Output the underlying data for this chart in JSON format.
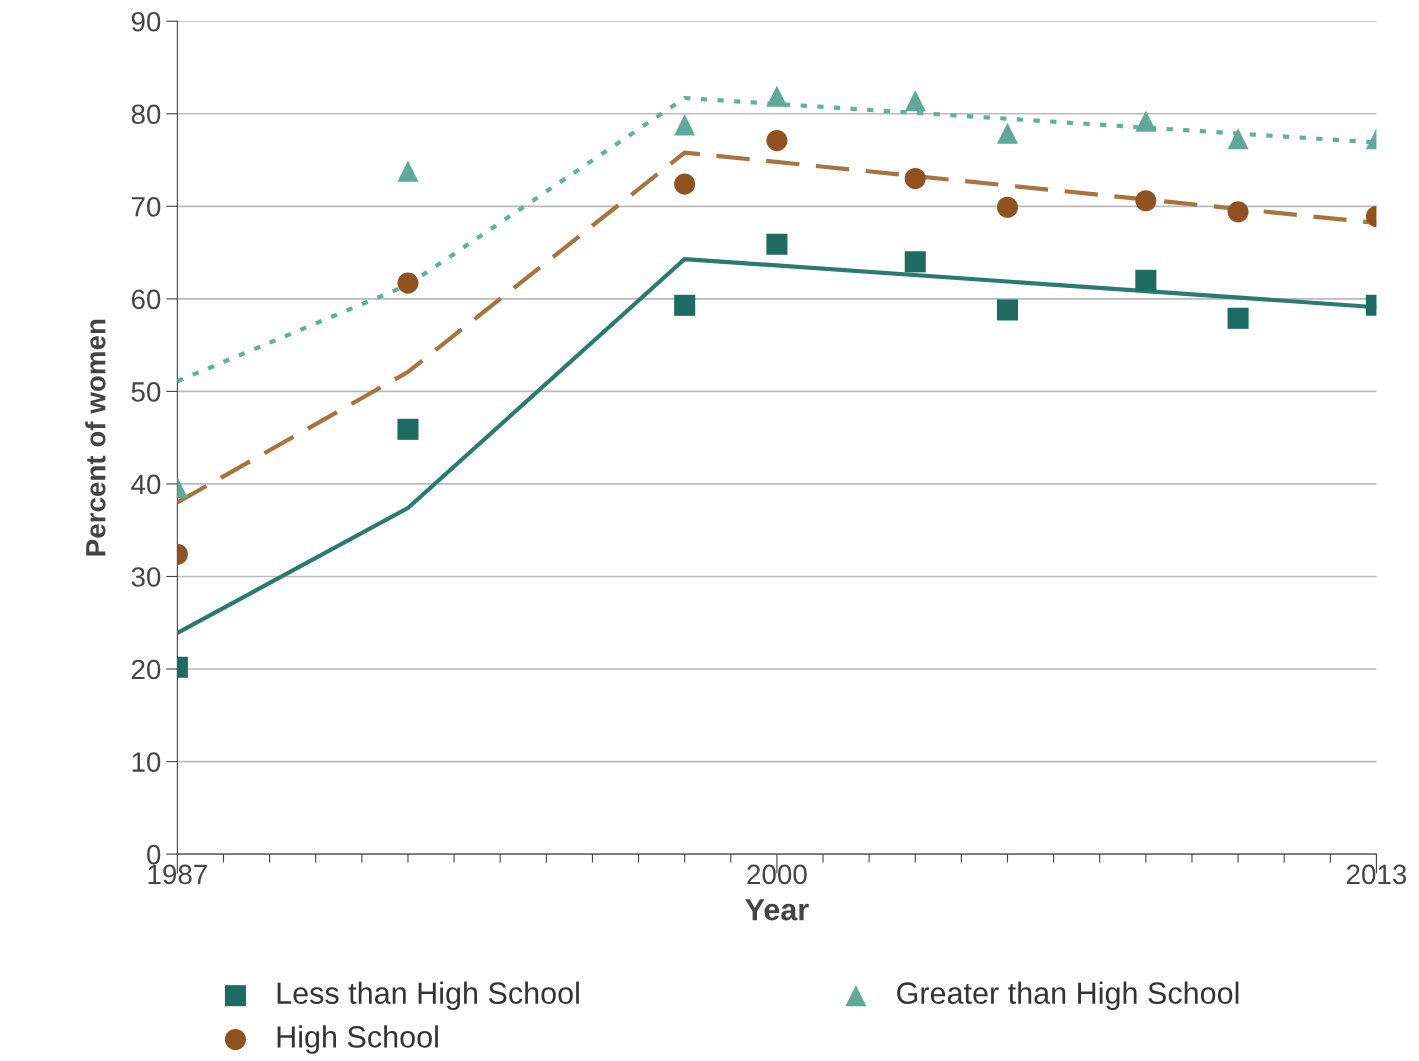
{
  "chart_data": {
    "type": "scatter",
    "xlabel": "Year",
    "ylabel": "Percent of women",
    "xlim": [
      1987,
      2013
    ],
    "xticks": [
      1987,
      {
        "value": 1988,
        "label": null
      },
      {
        "value": 1989,
        "label": null
      },
      {
        "value": 1990,
        "label": null
      },
      {
        "value": 1991,
        "label": null
      },
      {
        "value": 1992,
        "label": null
      },
      {
        "value": 1993,
        "label": null
      },
      {
        "value": 1994,
        "label": null
      },
      {
        "value": 1995,
        "label": null
      },
      {
        "value": 1996,
        "label": null
      },
      {
        "value": 1997,
        "label": null
      },
      {
        "value": 1998,
        "label": null
      },
      {
        "value": 1999,
        "label": null
      },
      2000,
      {
        "value": 2001,
        "label": null
      },
      {
        "value": 2002,
        "label": null
      },
      {
        "value": 2003,
        "label": null
      },
      {
        "value": 2004,
        "label": null
      },
      {
        "value": 2005,
        "label": null
      },
      {
        "value": 2006,
        "label": null
      },
      {
        "value": 2007,
        "label": null
      },
      {
        "value": 2008,
        "label": null
      },
      {
        "value": 2009,
        "label": null
      },
      {
        "value": 2010,
        "label": null
      },
      {
        "value": 2011,
        "label": null
      },
      {
        "value": 2012,
        "label": null
      },
      2013
    ],
    "ylim": [
      0,
      90
    ],
    "yticks": [
      0,
      10,
      20,
      30,
      40,
      50,
      60,
      70,
      80,
      90
    ],
    "grid": "y",
    "legend": "bottom",
    "x": [
      1987,
      1992,
      1998,
      2000,
      2003,
      2005,
      2008,
      2010,
      2013
    ],
    "series": [
      {
        "name": "Less than High School",
        "color": "#1d6b63",
        "marker": "square",
        "values": [
          20.2,
          45.9,
          59.3,
          65.9,
          64.0,
          58.8,
          62.0,
          57.9,
          59.3
        ]
      },
      {
        "name": "High School",
        "color": "#8f5220",
        "marker": "circle",
        "values": [
          32.4,
          61.7,
          72.4,
          77.1,
          73.0,
          69.9,
          70.6,
          69.4,
          68.9
        ]
      },
      {
        "name": "Greater than High School",
        "color": "#5fa89a",
        "marker": "triangle",
        "values": [
          39.6,
          73.8,
          78.8,
          81.9,
          81.4,
          77.9,
          79.2,
          77.3,
          77.3
        ]
      },
      {
        "type": "line",
        "color": "#2a7a6e",
        "line_style": "solid",
        "x": [
          1987,
          1992,
          1998,
          2013
        ],
        "values": [
          23.9,
          37.4,
          64.3,
          59.1
        ]
      },
      {
        "type": "line",
        "color": "#a8733d",
        "line_style": "dashed",
        "x": [
          1987,
          1992,
          1998,
          2013
        ],
        "values": [
          38.0,
          52.1,
          75.8,
          68.2
        ]
      },
      {
        "type": "line",
        "color": "#5fb0a0",
        "line_style": "dotted",
        "x": [
          1987,
          1992,
          1998,
          2013
        ],
        "values": [
          51.1,
          61.5,
          81.7,
          76.9
        ]
      }
    ]
  }
}
